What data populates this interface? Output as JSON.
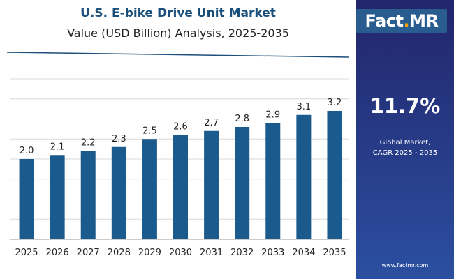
{
  "header": {
    "title": "U.S. E-bike Drive Unit Market",
    "subtitle": "Value (USD Billion) Analysis, 2025-2035"
  },
  "brand": {
    "logo_prefix": "Fact",
    "logo_dot": ".",
    "logo_suffix": "MR",
    "website": "www.factmr.com"
  },
  "highlight": {
    "value": "11.7%",
    "label_line1": "Global Market,",
    "label_line2": "CAGR 2025 - 2035"
  },
  "colors": {
    "bar": "#1b5a8c",
    "title": "#1a4f7c",
    "panel_top": "#22256b",
    "panel_bottom": "#2b4fa0",
    "logo_accent": "#f3a000",
    "grid": "#d9d9d9"
  },
  "chart_data": {
    "type": "bar",
    "title": "U.S. E-bike Drive Unit Market",
    "subtitle": "Value (USD Billion) Analysis, 2025-2035",
    "categories": [
      "2025",
      "2026",
      "2027",
      "2028",
      "2029",
      "2030",
      "2031",
      "2032",
      "2033",
      "2034",
      "2035"
    ],
    "values": [
      2.0,
      2.1,
      2.2,
      2.3,
      2.5,
      2.6,
      2.7,
      2.8,
      2.9,
      3.1,
      3.2
    ],
    "value_labels": [
      "2.0",
      "2.1",
      "2.2",
      "2.3",
      "2.5",
      "2.6",
      "2.7",
      "2.8",
      "2.9",
      "3.1",
      "3.2"
    ],
    "xlabel": "",
    "ylabel": "",
    "ylim": [
      0,
      4.4
    ],
    "grid": true,
    "legend": "none"
  }
}
